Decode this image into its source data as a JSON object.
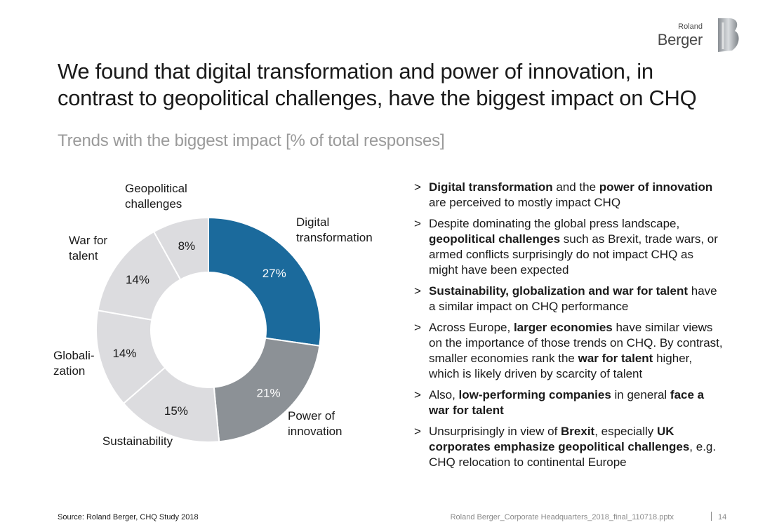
{
  "brand": {
    "line1": "Roland",
    "line2": "Berger",
    "mark": "B"
  },
  "title": "We found that digital transformation and power of innovation, in contrast to geopolitical challenges, have the biggest impact on CHQ",
  "subtitle": "Trends with the biggest impact [% of total responses]",
  "chart_data": {
    "type": "pie",
    "title": "Trends with the biggest impact [% of total responses]",
    "categories": [
      "Digital transformation",
      "Power of innovation",
      "Sustainability",
      "Globalization",
      "War for talent",
      "Geopolitical challenges"
    ],
    "values": [
      27,
      21,
      15,
      14,
      14,
      8
    ],
    "value_labels": [
      "27%",
      "21%",
      "15%",
      "14%",
      "14%",
      "8%"
    ],
    "label_lines": [
      [
        "Digital",
        "transformation"
      ],
      [
        "Power of",
        "innovation"
      ],
      [
        "Sustainability"
      ],
      [
        "Globali-",
        "zation"
      ],
      [
        "War for",
        "talent"
      ],
      [
        "Geopolitical",
        "challenges"
      ]
    ],
    "colors": [
      "#1b6a9c",
      "#8c9196",
      "#dcdcdf",
      "#dcdcdf",
      "#dcdcdf",
      "#dcdcdf"
    ],
    "pct_colors": [
      "#ffffff",
      "#ffffff",
      "#1a1a1a",
      "#1a1a1a",
      "#1a1a1a",
      "#1a1a1a"
    ],
    "donut": true,
    "start_angle_deg": 0,
    "direction": "clockwise"
  },
  "bullets": [
    {
      "marker": ">",
      "parts": [
        {
          "t": "Digital transformation",
          "b": true
        },
        {
          "t": " and the ",
          "b": false
        },
        {
          "t": "power of innovation",
          "b": true
        },
        {
          "t": " are perceived to mostly impact CHQ",
          "b": false
        }
      ]
    },
    {
      "marker": ">",
      "parts": [
        {
          "t": "Despite dominating the global press landscape, ",
          "b": false
        },
        {
          "t": "geopolitical challenges",
          "b": true
        },
        {
          "t": " such as Brexit, trade wars, or armed conflicts surprisingly do not impact CHQ as might have been expected",
          "b": false
        }
      ]
    },
    {
      "marker": ">",
      "parts": [
        {
          "t": "Sustainability, globalization and war for talent",
          "b": true
        },
        {
          "t": " have a similar impact on CHQ performance",
          "b": false
        }
      ]
    },
    {
      "marker": ">",
      "parts": [
        {
          "t": "Across Europe, ",
          "b": false
        },
        {
          "t": "larger economies",
          "b": true
        },
        {
          "t": " have similar views on the importance of those trends on CHQ. By contrast, smaller economies rank the ",
          "b": false
        },
        {
          "t": "war for talent",
          "b": true
        },
        {
          "t": " higher, which is likely driven by scarcity of talent",
          "b": false
        }
      ]
    },
    {
      "marker": ">",
      "parts": [
        {
          "t": "Also, ",
          "b": false
        },
        {
          "t": "low-performing companies",
          "b": true
        },
        {
          "t": " in general ",
          "b": false
        },
        {
          "t": "face a war for talent",
          "b": true
        }
      ]
    },
    {
      "marker": ">",
      "parts": [
        {
          "t": "Unsurprisingly in view of ",
          "b": false
        },
        {
          "t": "Brexit",
          "b": true
        },
        {
          "t": ", especially ",
          "b": false
        },
        {
          "t": "UK corporates emphasize geopolitical challenges",
          "b": true
        },
        {
          "t": ", e.g. CHQ relocation to continental Europe",
          "b": false
        }
      ]
    }
  ],
  "footer": {
    "source": "Source: Roland Berger, CHQ Study 2018",
    "filename": "Roland Berger_Corporate Headquarters_2018_final_110718.pptx",
    "page": "14"
  }
}
